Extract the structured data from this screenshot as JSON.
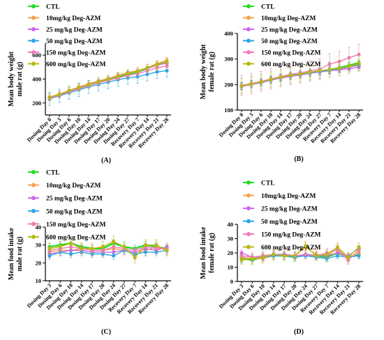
{
  "colors": {
    "CTL": "#22dd22",
    "A10": "#f6a04d",
    "A25": "#cc66ee",
    "A50": "#2fa6e6",
    "A150": "#f07ab8",
    "A600": "#b8b814",
    "axis": "#000000"
  },
  "chart_data": [
    {
      "type": "line",
      "panel_label": "(A)",
      "ylabel": [
        "Mean body weight",
        "male rat (g)"
      ],
      "ylim": [
        100,
        700
      ],
      "yticks": [
        200,
        400,
        600
      ],
      "grid": false,
      "legend_placement": "top-left-outside",
      "categories": [
        "Dosing Day 0",
        "Dosing Day 3",
        "Dosing Day 6",
        "Dosing Day 10",
        "Dosing Day 14",
        "Dosing Day 17",
        "Dosing Day 20",
        "Dosing Day 24",
        "Dosing Day 27",
        "Recovery Day 7",
        "Recovery Day 14",
        "Recovery Day 21",
        "Recovery Day 28"
      ],
      "series": [
        {
          "name": "CTL",
          "key": "CTL",
          "values": [
            245,
            270,
            300,
            325,
            350,
            375,
            395,
            420,
            440,
            460,
            490,
            520,
            545
          ],
          "err": 15
        },
        {
          "name": "10mg/kg Deg-AZM",
          "key": "A10",
          "values": [
            250,
            275,
            305,
            335,
            360,
            385,
            405,
            430,
            455,
            470,
            495,
            530,
            555
          ],
          "err": 25
        },
        {
          "name": "25 mg/kg Deg-AZM",
          "key": "A25",
          "values": [
            245,
            270,
            300,
            330,
            355,
            380,
            400,
            425,
            445,
            465,
            490,
            515,
            535
          ],
          "err": 15
        },
        {
          "name": "50 mg/kg Deg-AZM",
          "key": "A50",
          "values": [
            235,
            260,
            285,
            310,
            335,
            355,
            375,
            395,
            410,
            420,
            440,
            460,
            470
          ],
          "err": 55
        },
        {
          "name": "150 mg/kg Deg-AZM",
          "key": "A150",
          "values": [
            240,
            265,
            295,
            320,
            345,
            370,
            390,
            410,
            430,
            445,
            470,
            495,
            510
          ],
          "err": 20
        },
        {
          "name": "600 mg/kg Deg-AZM",
          "key": "A600",
          "values": [
            248,
            272,
            302,
            330,
            355,
            380,
            400,
            425,
            447,
            465,
            495,
            520,
            545
          ],
          "err": 30
        }
      ]
    },
    {
      "type": "line",
      "panel_label": "(B)",
      "ylabel": [
        "Mean body weight",
        "female rat (g)"
      ],
      "ylim": [
        100,
        400
      ],
      "yticks": [
        100,
        200,
        300,
        400
      ],
      "grid": false,
      "legend_placement": "top-left-outside",
      "categories": [
        "Dosing Day 0",
        "Dosing Day 3",
        "Dosing Day 6",
        "Dosing Day 10",
        "Dosing Day 14",
        "Dosing Day 17",
        "Dosing Day 20",
        "Dosing Day 24",
        "Dosing Day 27",
        "Recovery Day 7",
        "Recovery Day 14",
        "Recovery Day 21",
        "Recovery Day 28"
      ],
      "series": [
        {
          "name": "CTL",
          "key": "CTL",
          "values": [
            195,
            203,
            210,
            220,
            228,
            235,
            240,
            247,
            252,
            258,
            265,
            275,
            285
          ],
          "err": 12
        },
        {
          "name": "10mg/kg Deg-AZM",
          "key": "A10",
          "values": [
            193,
            200,
            208,
            218,
            226,
            233,
            238,
            245,
            250,
            255,
            260,
            268,
            275
          ],
          "err": 12
        },
        {
          "name": "25 mg/kg Deg-AZM",
          "key": "A25",
          "values": [
            192,
            200,
            207,
            217,
            225,
            232,
            237,
            244,
            249,
            254,
            258,
            262,
            268
          ],
          "err": 12
        },
        {
          "name": "50 mg/kg Deg-AZM",
          "key": "A50",
          "values": [
            194,
            202,
            209,
            219,
            227,
            235,
            240,
            246,
            251,
            256,
            262,
            270,
            278
          ],
          "err": 15
        },
        {
          "name": "150 mg/kg Deg-AZM",
          "key": "A150",
          "values": [
            196,
            204,
            212,
            222,
            231,
            240,
            246,
            253,
            260,
            280,
            290,
            305,
            318
          ],
          "err": 40
        },
        {
          "name": "600 mg/kg Deg-AZM",
          "key": "A600",
          "values": [
            194,
            202,
            210,
            220,
            228,
            236,
            241,
            248,
            254,
            258,
            264,
            272,
            282
          ],
          "err": 30
        }
      ]
    },
    {
      "type": "line",
      "panel_label": "(C)",
      "ylabel": [
        "Mean food intake",
        "male rat (g)"
      ],
      "ylim": [
        10,
        40
      ],
      "yticks": [
        10,
        20,
        30,
        40
      ],
      "grid": false,
      "legend_placement": "top-left-outside",
      "categories": [
        "Dosing Day 3",
        "Dosing Day 6",
        "Dosing Day 10",
        "Dosing Day 14",
        "Dosing Day 17",
        "Dosing Day 20",
        "Dosing Day 24",
        "Dosing Day 27",
        "Recovery Day 7",
        "Recovery Day 14",
        "Recovery Day 21",
        "Recovery Day 28"
      ],
      "series": [
        {
          "name": "CTL",
          "key": "CTL",
          "values": [
            29,
            30,
            31,
            29,
            28,
            28,
            31,
            29,
            28,
            30,
            29,
            28
          ],
          "err": 2
        },
        {
          "name": "10mg/kg Deg-AZM",
          "key": "A10",
          "values": [
            26,
            27,
            27,
            28,
            27,
            27,
            28,
            27,
            25,
            27,
            29,
            27
          ],
          "err": 3
        },
        {
          "name": "25 mg/kg Deg-AZM",
          "key": "A25",
          "values": [
            25,
            26,
            27,
            27,
            26,
            26,
            26,
            27,
            26,
            28,
            27,
            29
          ],
          "err": 2
        },
        {
          "name": "50 mg/kg Deg-AZM",
          "key": "A50",
          "values": [
            24,
            26,
            25,
            26,
            25,
            25,
            24,
            27,
            25,
            26,
            26,
            27
          ],
          "err": 2
        },
        {
          "name": "150 mg/kg Deg-AZM",
          "key": "A150",
          "values": [
            27,
            28,
            29,
            28,
            27,
            27,
            29,
            28,
            27,
            29,
            28,
            28
          ],
          "err": 2
        },
        {
          "name": "600 mg/kg Deg-AZM",
          "key": "A600",
          "values": [
            28,
            29,
            31,
            28,
            28,
            29,
            32,
            29,
            23,
            30,
            30,
            27
          ],
          "err": 3
        }
      ]
    },
    {
      "type": "line",
      "panel_label": "(D)",
      "ylabel": [
        "Mean food intake",
        "female rat (g)"
      ],
      "ylim": [
        0,
        40
      ],
      "yticks": [
        0,
        10,
        20,
        30,
        40
      ],
      "grid": false,
      "legend_placement": "top-left-outside",
      "categories": [
        "Dosing Day 3",
        "Dosing Day 6",
        "Dosing Day 10",
        "Dosing Day 14",
        "Dosing Day 17",
        "Dosing Day 20",
        "Dosing Day 24",
        "Dosing Day 27",
        "Recovery Day 7",
        "Recovery Day 14",
        "Recovery Day 21",
        "Recovery Day 28"
      ],
      "series": [
        {
          "name": "CTL",
          "key": "CTL",
          "values": [
            16,
            15,
            17,
            18,
            18,
            17,
            19,
            18,
            17,
            20,
            17,
            19
          ],
          "err": 3
        },
        {
          "name": "10mg/kg Deg-AZM",
          "key": "A10",
          "values": [
            17,
            16,
            16,
            18,
            19,
            18,
            24,
            19,
            18,
            23,
            16,
            20
          ],
          "err": 3
        },
        {
          "name": "25 mg/kg Deg-AZM",
          "key": "A25",
          "values": [
            20,
            17,
            17,
            19,
            19,
            18,
            18,
            18,
            18,
            20,
            18,
            23
          ],
          "err": 2
        },
        {
          "name": "50 mg/kg Deg-AZM",
          "key": "A50",
          "values": [
            15,
            16,
            17,
            18,
            18,
            17,
            18,
            17,
            16,
            18,
            17,
            18
          ],
          "err": 2
        },
        {
          "name": "150 mg/kg Deg-AZM",
          "key": "A150",
          "values": [
            18,
            17,
            18,
            19,
            18,
            18,
            19,
            18,
            20,
            22,
            15,
            22
          ],
          "err": 3
        },
        {
          "name": "600 mg/kg Deg-AZM",
          "key": "A600",
          "values": [
            15,
            16,
            17,
            19,
            18,
            18,
            25,
            18,
            19,
            24,
            17,
            24
          ],
          "err": 3
        }
      ]
    }
  ]
}
